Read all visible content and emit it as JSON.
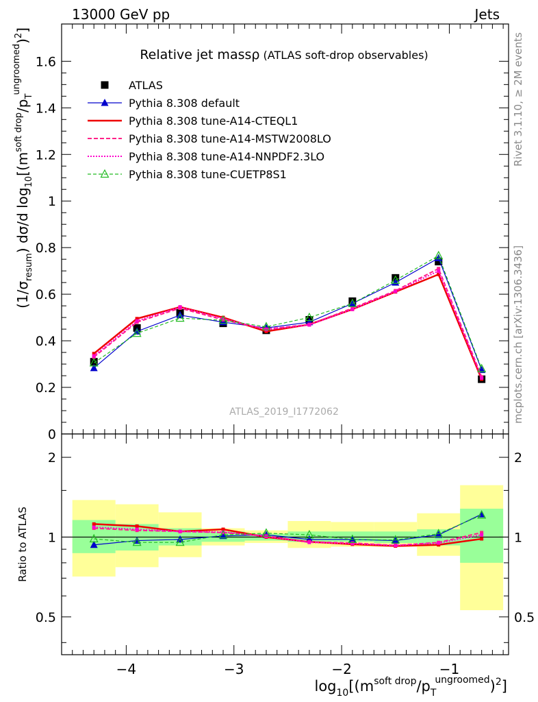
{
  "header": {
    "left": "13000 GeV pp",
    "right": "Jets"
  },
  "side_labels": {
    "rivet": "Rivet 3.1.10, ≥ 2M events",
    "mcplots": "mcplots.cern.ch [arXiv:1306.3436]"
  },
  "watermark": "ATLAS_2019_I1772062",
  "colors": {
    "ATLAS": "#000000",
    "default": "#0000cc",
    "CTEQL1": "#ee0000",
    "MSTW": "#ff2288",
    "NNPDF": "#ff00cc",
    "CUETP8S1": "#22bb22",
    "band_inner": "#99ff99",
    "band_outer": "#ffff99"
  },
  "chart_data": [
    {
      "type": "line",
      "title": "Relative jet massρ",
      "subtitle": "(ATLAS soft-drop observables)",
      "ylabel": "(1/σ_resum) dσ/d log10[(m^soft drop/pT^ungroomed)^2]",
      "xlabel": "log10[(m^soft drop/pT^ungroomed)^2]",
      "xlim": [
        -4.6,
        -0.45
      ],
      "ylim": [
        0,
        1.76
      ],
      "yticks": [
        0,
        0.2,
        0.4,
        0.6,
        0.8,
        1,
        1.2,
        1.4,
        1.6
      ],
      "ytick_labels": [
        "0",
        "0.2",
        "0.4",
        "0.6",
        "0.8",
        "1",
        "1.2",
        "1.4",
        "1.6"
      ],
      "x": [
        -4.3,
        -3.9,
        -3.5,
        -3.1,
        -2.7,
        -2.3,
        -1.9,
        -1.5,
        -1.1,
        -0.7
      ],
      "legend": "top-left",
      "series": [
        {
          "key": "ATLAS",
          "name": "ATLAS",
          "values": [
            0.31,
            0.455,
            0.52,
            0.475,
            0.445,
            0.49,
            0.57,
            0.67,
            0.74,
            0.235
          ]
        },
        {
          "key": "default",
          "name": "Pythia 8.308 default",
          "values": [
            0.283,
            0.44,
            0.51,
            0.48,
            0.455,
            0.48,
            0.56,
            0.65,
            0.755,
            0.275
          ]
        },
        {
          "key": "CTEQL1",
          "name": "Pythia 8.308 tune-A14-CTEQL1",
          "values": [
            0.345,
            0.495,
            0.545,
            0.5,
            0.44,
            0.47,
            0.535,
            0.61,
            0.685,
            0.235
          ]
        },
        {
          "key": "MSTW",
          "name": "Pythia 8.308 tune-A14-MSTW2008LO",
          "values": [
            0.33,
            0.48,
            0.54,
            0.49,
            0.45,
            0.47,
            0.54,
            0.615,
            0.71,
            0.245
          ]
        },
        {
          "key": "NNPDF",
          "name": "Pythia 8.308 tune-A14-NNPDF2.3LO",
          "values": [
            0.335,
            0.485,
            0.545,
            0.495,
            0.448,
            0.468,
            0.535,
            0.612,
            0.7,
            0.24
          ]
        },
        {
          "key": "CUETP8S1",
          "name": "Pythia 8.308 tune-CUETP8S1",
          "values": [
            0.305,
            0.432,
            0.497,
            0.488,
            0.46,
            0.5,
            0.56,
            0.66,
            0.765,
            0.28
          ]
        }
      ]
    },
    {
      "type": "line",
      "ylabel": "Ratio to ATLAS",
      "xlabel": "log10[(m^soft drop/pT^ungroomed)^2]",
      "xlim": [
        -4.6,
        -0.45
      ],
      "ylim": [
        0.36,
        2.45
      ],
      "log_y": true,
      "yticks": [
        0.5,
        1,
        2
      ],
      "ytick_labels": [
        "0.5",
        "1",
        "2"
      ],
      "xticks": [
        -4,
        -3,
        -2,
        -1
      ],
      "xtick_labels": [
        "−4",
        "−3",
        "−2",
        "−1"
      ],
      "x": [
        -4.3,
        -3.9,
        -3.5,
        -3.1,
        -2.7,
        -2.3,
        -1.9,
        -1.5,
        -1.1,
        -0.7
      ],
      "bin_edges": [
        -4.5,
        -4.1,
        -3.7,
        -3.3,
        -2.9,
        -2.5,
        -2.1,
        -1.7,
        -1.3,
        -0.9,
        -0.5
      ],
      "band_inner": [
        [
          0.87,
          1.16
        ],
        [
          0.89,
          1.12
        ],
        [
          0.93,
          1.08
        ],
        [
          0.96,
          1.05
        ],
        [
          0.97,
          1.03
        ],
        [
          0.96,
          1.05
        ],
        [
          0.96,
          1.05
        ],
        [
          0.95,
          1.05
        ],
        [
          0.93,
          1.07
        ],
        [
          0.8,
          1.28
        ]
      ],
      "band_outer": [
        [
          0.71,
          1.38
        ],
        [
          0.77,
          1.33
        ],
        [
          0.84,
          1.24
        ],
        [
          0.93,
          1.08
        ],
        [
          0.95,
          1.06
        ],
        [
          0.91,
          1.15
        ],
        [
          0.92,
          1.14
        ],
        [
          0.92,
          1.14
        ],
        [
          0.85,
          1.23
        ],
        [
          0.53,
          1.57
        ]
      ],
      "series": [
        {
          "key": "default",
          "values": [
            0.935,
            0.97,
            0.98,
            1.01,
            1.02,
            0.98,
            0.98,
            0.97,
            1.02,
            1.22
          ]
        },
        {
          "key": "CTEQL1",
          "values": [
            1.12,
            1.1,
            1.05,
            1.07,
            1.0,
            0.96,
            0.94,
            0.925,
            0.935,
            0.985
          ]
        },
        {
          "key": "MSTW",
          "values": [
            1.08,
            1.06,
            1.05,
            1.04,
            1.01,
            0.96,
            0.95,
            0.93,
            0.955,
            1.04
          ]
        },
        {
          "key": "NNPDF",
          "values": [
            1.09,
            1.07,
            1.05,
            1.045,
            1.005,
            0.955,
            0.945,
            0.93,
            0.95,
            1.02
          ]
        },
        {
          "key": "CUETP8S1",
          "values": [
            0.985,
            0.955,
            0.955,
            1.02,
            1.035,
            1.02,
            0.98,
            0.975,
            1.03,
            1.21
          ]
        }
      ]
    }
  ]
}
